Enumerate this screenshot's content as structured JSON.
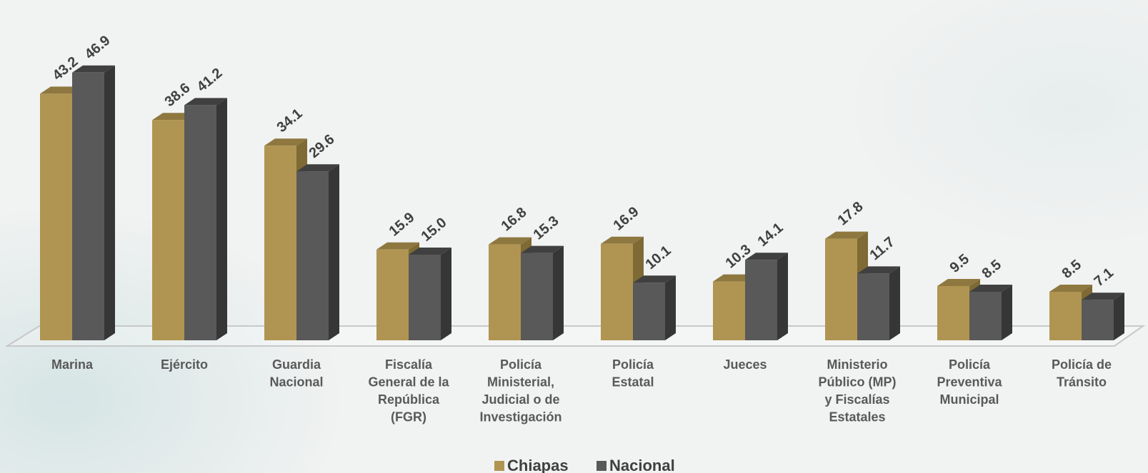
{
  "chart_data": {
    "type": "bar",
    "title": "",
    "xlabel": "",
    "ylabel": "",
    "ylim": [
      0,
      50
    ],
    "grid": false,
    "legend_position": "bottom-center",
    "categories": [
      [
        "Marina"
      ],
      [
        "Ejército"
      ],
      [
        "Guardia",
        "Nacional"
      ],
      [
        "Fiscalía",
        "General de la",
        "República",
        "(FGR)"
      ],
      [
        "Policía",
        "Ministerial,",
        "Judicial o de",
        "Investigación"
      ],
      [
        "Policía",
        "Estatal"
      ],
      [
        "Jueces"
      ],
      [
        "Ministerio",
        "Público (MP)",
        "y Fiscalías",
        "Estatales"
      ],
      [
        "Policía",
        "Preventiva",
        "Municipal"
      ],
      [
        "Policía de",
        "Tránsito"
      ]
    ],
    "series": [
      {
        "name": "Chiapas",
        "color": "#b09552",
        "side_color": "#7f6a35",
        "top_color": "#8e783f",
        "values": [
          43.2,
          38.6,
          34.1,
          15.9,
          16.8,
          16.9,
          10.3,
          17.8,
          9.5,
          8.5
        ],
        "labels": [
          "43.2",
          "38.6",
          "34.1",
          "15.9",
          "16.8",
          "16.9",
          "10.3",
          "17.8",
          "9.5",
          "8.5"
        ]
      },
      {
        "name": "Nacional",
        "color": "#595959",
        "side_color": "#363636",
        "top_color": "#404040",
        "values": [
          46.9,
          41.2,
          29.6,
          15.0,
          15.3,
          10.1,
          14.1,
          11.7,
          8.5,
          7.1
        ],
        "labels": [
          "46.9",
          "41.2",
          "29.6",
          "15.0",
          "15.3",
          "10.1",
          "14.1",
          "11.7",
          "8.5",
          "7.1"
        ]
      }
    ]
  }
}
